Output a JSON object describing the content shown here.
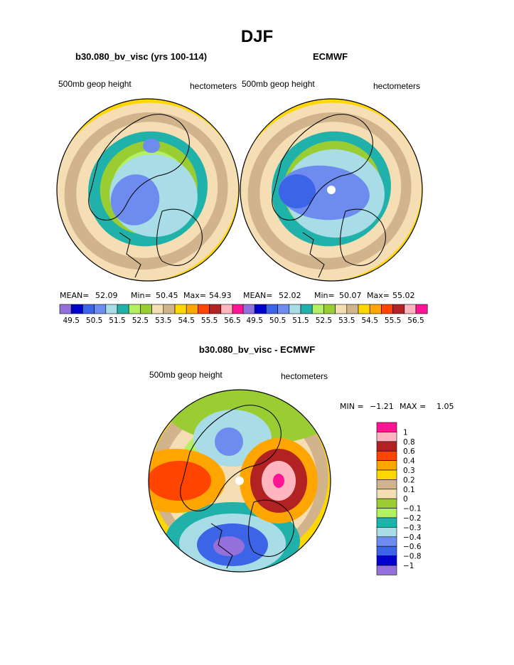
{
  "figure_title": "DJF",
  "chart_data": [
    {
      "type": "polar_contour_map",
      "title": "b30.080_bv_visc (yrs 100-114)",
      "left_label": "500mb geop height",
      "right_label": "hectometers",
      "mean_label": "MEAN=",
      "min_label": "Min=",
      "max_label": "Max=",
      "mean": "52.09",
      "min": "50.45",
      "max": "54.93",
      "colorbar_ticks": [
        "49.5",
        "50.5",
        "51.5",
        "52.5",
        "53.5",
        "54.5",
        "55.5",
        "56.5"
      ],
      "colorbar_colors": [
        "#9370db",
        "#0000cd",
        "#3c64e6",
        "#6e8cf0",
        "#a8dce6",
        "#20b2aa",
        "#b4f064",
        "#9acd32",
        "#f5deb3",
        "#d2b48c",
        "#ffd700",
        "#ffa500",
        "#ff4500",
        "#b22222",
        "#ffb6c1",
        "#ff1493"
      ],
      "fields": [
        {
          "contour_hm": 52.0,
          "fill": "#a8dce6",
          "center": [
            8,
            8
          ],
          "radius": [
            62,
            58
          ],
          "angle": 10
        },
        {
          "contour_hm": 51.5,
          "fill": "#6e8cf0",
          "center": [
            -18,
            14
          ],
          "radius": [
            34,
            36
          ],
          "angle": 20
        },
        {
          "contour_hm": 51.0,
          "fill": "#6e8cf0",
          "center": [
            5,
            -62
          ],
          "radius": [
            12,
            10
          ],
          "angle": 0
        }
      ]
    },
    {
      "type": "polar_contour_map",
      "title": "ECMWF",
      "left_label": "500mb geop height",
      "right_label": "hectometers",
      "mean_label": "MEAN=",
      "min_label": "Min=",
      "max_label": "Max=",
      "mean": "52.02",
      "min": "50.07",
      "max": "55.02",
      "colorbar_ticks": [
        "49.5",
        "50.5",
        "51.5",
        "52.5",
        "53.5",
        "54.5",
        "55.5",
        "56.5"
      ],
      "colorbar_colors": [
        "#9370db",
        "#0000cd",
        "#3c64e6",
        "#6e8cf0",
        "#a8dce6",
        "#20b2aa",
        "#b4f064",
        "#9acd32",
        "#f5deb3",
        "#d2b48c",
        "#ffd700",
        "#ffa500",
        "#ff4500",
        "#b22222",
        "#ffb6c1",
        "#ff1493"
      ],
      "fields": [
        {
          "contour_hm": 52.0,
          "fill": "#a8dce6",
          "center": [
            5,
            5
          ],
          "radius": [
            70,
            62
          ],
          "angle": 5
        },
        {
          "contour_hm": 51.5,
          "fill": "#6e8cf0",
          "center": [
            -10,
            4
          ],
          "radius": [
            64,
            38
          ],
          "angle": 5
        },
        {
          "contour_hm": 51.0,
          "fill": "#3c64e6",
          "center": [
            -48,
            2
          ],
          "radius": [
            26,
            24
          ],
          "angle": 0
        }
      ]
    },
    {
      "type": "polar_contour_map",
      "title": "b30.080_bv_visc - ECMWF",
      "left_label": "500mb geop height",
      "right_label": "hectometers",
      "min_label": "MIN =",
      "max_label": "MAX =",
      "min": "−1.21",
      "max": "1.05",
      "colorbar_ticks": [
        "1",
        "0.8",
        "0.6",
        "0.4",
        "0.3",
        "0.2",
        "0.1",
        "0",
        "−0.1",
        "−0.2",
        "−0.3",
        "−0.4",
        "−0.6",
        "−0.8",
        "−1"
      ],
      "colorbar_colors": [
        "#ff1493",
        "#ffb6c1",
        "#b22222",
        "#ff4500",
        "#ffa500",
        "#ffd700",
        "#d2b48c",
        "#f5deb3",
        "#9acd32",
        "#b4f064",
        "#20b2aa",
        "#a8dce6",
        "#6e8cf0",
        "#3c64e6",
        "#0000cd",
        "#9370db"
      ],
      "fields": [
        {
          "anomaly": 0.6,
          "fill": "#ff4500",
          "center": [
            -85,
            0
          ],
          "radius": [
            45,
            28
          ],
          "angle": 0
        },
        {
          "anomaly": 0.6,
          "fill": "#b22222",
          "center": [
            55,
            0
          ],
          "radius": [
            40,
            45
          ],
          "angle": 0
        },
        {
          "anomaly": 0.8,
          "fill": "#ffb6c1",
          "center": [
            55,
            0
          ],
          "radius": [
            24,
            28
          ],
          "angle": 0
        },
        {
          "anomaly": 1.0,
          "fill": "#ff1493",
          "center": [
            55,
            0
          ],
          "radius": [
            8,
            10
          ],
          "angle": 0
        },
        {
          "anomaly": -0.6,
          "fill": "#3c64e6",
          "center": [
            -10,
            90
          ],
          "radius": [
            50,
            30
          ],
          "angle": 0
        },
        {
          "anomaly": -1.0,
          "fill": "#9370db",
          "center": [
            -15,
            92
          ],
          "radius": [
            22,
            14
          ],
          "angle": 0
        },
        {
          "anomaly": -0.4,
          "fill": "#6e8cf0",
          "center": [
            -15,
            -55
          ],
          "radius": [
            20,
            20
          ],
          "angle": 0
        }
      ]
    }
  ]
}
